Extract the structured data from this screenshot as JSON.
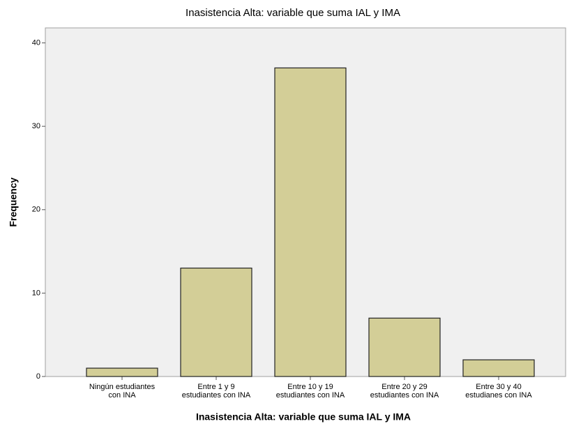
{
  "chart_data": {
    "type": "bar",
    "title": "Inasistencia Alta: variable que suma IAL y IMA",
    "x_label": "Inasistencia Alta: variable que suma IAL y IMA",
    "y_label": "Frequency",
    "categories": [
      "Ningún estudiantes\ncon INA",
      "Entre 1 y 9\nestudiantes con INA",
      "Entre 10 y 19\nestudiantes con INA",
      "Entre 20 y 29\nestudiantes con INA",
      "Entre 30 y 40\nestudianes con INA"
    ],
    "values": [
      1,
      13,
      37,
      7,
      2
    ],
    "color": "#d3ce97",
    "ylim": [
      0,
      41.8
    ],
    "yticks": [
      0,
      10,
      20,
      30,
      40
    ]
  }
}
